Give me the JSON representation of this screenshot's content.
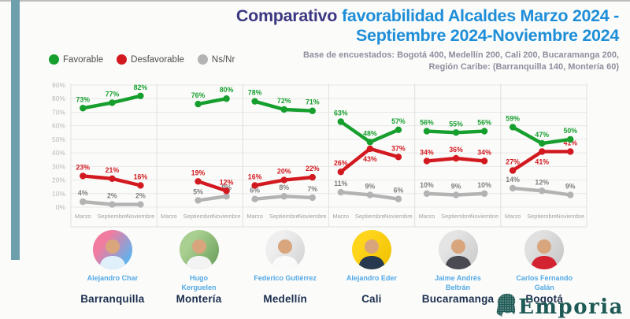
{
  "header": {
    "title_prefix": "Comparativo",
    "title_rest_line1": "favorabilidad Alcaldes Marzo 2024 -",
    "title_line2": "Septiembre 2024-Noviembre 2024",
    "subtitle_line1": "Base de encuestados: Bogotá 400, Medellín 200, Cali 200, Bucaramanga 200,",
    "subtitle_line2": "Región Caribe: (Barranquilla 140, Montería 60)"
  },
  "legend": [
    {
      "key": "favorable",
      "label": "Favorable",
      "color": "#169f2d"
    },
    {
      "key": "desfavorable",
      "label": "Desfavorable",
      "color": "#d2191f"
    },
    {
      "key": "nsnr",
      "label": "Ns/Nr",
      "color": "#b3b3b3"
    }
  ],
  "chart_data": {
    "type": "line",
    "x_labels": [
      "Marzo",
      "Septiembre",
      "Noviembre"
    ],
    "ylim": [
      0,
      90
    ],
    "y_tick_step": 10,
    "y_tick_suffix": "%",
    "grid": true,
    "colors": {
      "favorable": "#169f2d",
      "desfavorable": "#d2191f",
      "nsnr": "#b3b3b3"
    },
    "label_colors": {
      "nsnr": "#7f7f7f"
    },
    "panels": [
      {
        "city": "Barranquilla",
        "mayor_lines": [
          "Alejandro Char"
        ],
        "favorable": [
          73,
          77,
          82
        ],
        "desfavorable": [
          23,
          21,
          16
        ],
        "nsnr": [
          4,
          2,
          2
        ],
        "avatar": {
          "bg": [
            "#f07ca0",
            "#5fb2ee"
          ],
          "shirt": "#dff0fb"
        }
      },
      {
        "city": "Montería",
        "mayor_lines": [
          "Hugo",
          "Kerguelen"
        ],
        "favorable": [
          null,
          76,
          80
        ],
        "desfavorable": [
          null,
          19,
          12
        ],
        "nsnr": [
          null,
          5,
          8
        ],
        "avatar": {
          "bg": [
            "#a9cf90",
            "#74a763"
          ],
          "shirt": "#f3f3f3"
        }
      },
      {
        "city": "Medellín",
        "mayor_lines": [
          "Federico Gutiérrez"
        ],
        "favorable": [
          78,
          72,
          71
        ],
        "desfavorable": [
          16,
          20,
          22
        ],
        "nsnr": [
          6,
          8,
          7
        ],
        "avatar": {
          "bg": [
            "#efefef",
            "#d8d8d8"
          ],
          "shirt": "#fafafa"
        }
      },
      {
        "city": "Cali",
        "mayor_lines": [
          "Alejandro Eder"
        ],
        "favorable": [
          63,
          48,
          57
        ],
        "desfavorable": [
          26,
          43,
          37
        ],
        "nsnr": [
          11,
          9,
          6
        ],
        "label_below": {
          "desfavorable": [
            false,
            true,
            false
          ]
        },
        "avatar": {
          "bg": [
            "#ffd51c",
            "#f2c404"
          ],
          "shirt": "#27394e"
        }
      },
      {
        "city": "Bucaramanga",
        "mayor_lines": [
          "Jaime Andrés",
          "Beltrán"
        ],
        "favorable": [
          56,
          55,
          56
        ],
        "desfavorable": [
          34,
          36,
          34
        ],
        "nsnr": [
          10,
          9,
          10
        ],
        "avatar": {
          "bg": [
            "#e4e4e4",
            "#cfcfcf"
          ],
          "shirt": "#4a4a52"
        }
      },
      {
        "city": "Bogotá",
        "mayor_lines": [
          "Carlos Fernando",
          "Galán"
        ],
        "favorable": [
          59,
          47,
          50
        ],
        "desfavorable": [
          27,
          41,
          41
        ],
        "nsnr": [
          14,
          12,
          9
        ],
        "label_below": {
          "desfavorable": [
            false,
            true,
            false
          ]
        },
        "avatar": {
          "bg": [
            "#e0e0e0",
            "#cbcbcb"
          ],
          "shirt": "#d42330"
        }
      }
    ]
  },
  "avatar_skin": "#d8a57d",
  "logo": {
    "text": "Emporia",
    "color": "#1e5a55"
  }
}
